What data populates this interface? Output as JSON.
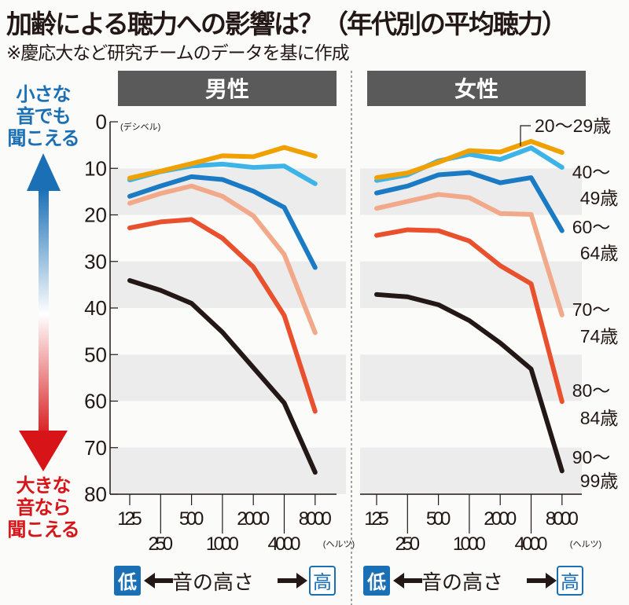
{
  "title": "加齢による聴力への影響は？（年代別の平均聴力）",
  "subtitle": "※慶応大など研究チームのデータを基に作成",
  "side_labels": {
    "top": "小さな音でも聞こえる",
    "bottom": "大きな音なら聞こえる"
  },
  "colors": {
    "header_bg": "#5a5a5a",
    "band": "#ececec",
    "low_box": "#1a6fb5",
    "high_box": "#1a6fb5",
    "arrow_top": "#1a6fb5",
    "arrow_bottom": "#d71518"
  },
  "x_axis": {
    "unit": "(ヘルツ)",
    "direction_label": "音の高さ",
    "low": "低",
    "high": "高"
  },
  "chart_data": [
    {
      "type": "line",
      "title": "男性",
      "ylabel": "(デシベル)",
      "ylim": [
        0,
        80
      ],
      "y_inverted": true,
      "yticks": [
        0,
        10,
        20,
        30,
        40,
        50,
        60,
        70,
        80
      ],
      "x": [
        "125",
        "250",
        "500",
        "1000",
        "2000",
        "4000",
        "8000"
      ],
      "grid": "alternating bands",
      "series": [
        {
          "name": "20～29歳",
          "color": "#f0a000",
          "values": [
            12.1,
            10.6,
            9.0,
            7.3,
            7.5,
            5.5,
            7.4
          ]
        },
        {
          "name": "40～49歳",
          "color": "#3db4e8",
          "values": [
            12.5,
            10.7,
            9.5,
            9.1,
            9.8,
            9.5,
            13.3
          ]
        },
        {
          "name": "60～64歳",
          "color": "#1a7bc4",
          "values": [
            16.0,
            13.8,
            11.8,
            12.4,
            14.9,
            18.4,
            31.3
          ]
        },
        {
          "name": "70～74歳",
          "color": "#f2a98a",
          "values": [
            17.5,
            15.4,
            13.8,
            16.0,
            20.2,
            28.5,
            45.3
          ]
        },
        {
          "name": "80～84歳",
          "color": "#e8502e",
          "values": [
            22.8,
            21.5,
            21.0,
            25.0,
            31.2,
            41.6,
            62.2
          ]
        },
        {
          "name": "90～99歳",
          "color": "#231815",
          "values": [
            34.1,
            36.2,
            39.0,
            45.2,
            52.8,
            60.4,
            75.3
          ]
        }
      ]
    },
    {
      "type": "line",
      "title": "女性",
      "ylim": [
        0,
        80
      ],
      "y_inverted": true,
      "x": [
        "125",
        "250",
        "500",
        "1000",
        "2000",
        "4000",
        "8000"
      ],
      "grid": "alternating bands",
      "legend": "right (labels at line ends)",
      "series": [
        {
          "name": "20～29歳",
          "label_lines": [
            "20～29歳"
          ],
          "color": "#f0a000",
          "values": [
            12.0,
            11.0,
            8.7,
            6.2,
            6.5,
            4.2,
            6.6
          ]
        },
        {
          "name": "40～49歳",
          "label_lines": [
            "40～",
            "49歳"
          ],
          "color": "#3db4e8",
          "values": [
            12.6,
            11.4,
            8.4,
            7.0,
            8.1,
            5.6,
            9.8
          ]
        },
        {
          "name": "60～64歳",
          "label_lines": [
            "60～",
            "64歳"
          ],
          "color": "#1a7bc4",
          "values": [
            15.3,
            13.8,
            11.4,
            10.9,
            13.1,
            12.0,
            23.4
          ]
        },
        {
          "name": "70～74歳",
          "label_lines": [
            "70～",
            "74歳"
          ],
          "color": "#f2a98a",
          "values": [
            18.6,
            17.1,
            15.6,
            16.3,
            19.7,
            19.9,
            41.5
          ]
        },
        {
          "name": "80～84歳",
          "label_lines": [
            "80～",
            "84歳"
          ],
          "color": "#e8502e",
          "values": [
            24.4,
            23.2,
            23.4,
            25.6,
            30.9,
            34.8,
            60.1
          ]
        },
        {
          "name": "90～99歳",
          "label_lines": [
            "90～",
            "99歳"
          ],
          "color": "#231815",
          "values": [
            37.1,
            37.6,
            39.3,
            42.7,
            47.5,
            53.1,
            75.0
          ]
        }
      ]
    }
  ]
}
